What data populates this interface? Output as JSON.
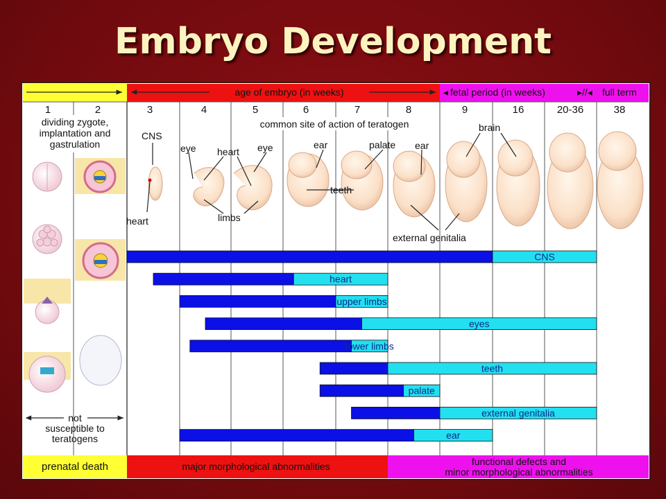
{
  "slide": {
    "title": "Embryo Development"
  },
  "header": {
    "embryo_period": "age of embryo (in weeks)",
    "fetal_period": "fetal period (in weeks)",
    "full_term": "full term",
    "colors": {
      "yellow": "#ffff33",
      "red": "#ee1111",
      "magenta": "#ee11ee"
    }
  },
  "weeks": [
    "1",
    "2",
    "3",
    "4",
    "5",
    "6",
    "7",
    "8",
    "9",
    "16",
    "20-36",
    "38"
  ],
  "early_stage_label": [
    "dividing zygote,",
    "implantation and",
    "gastrulation"
  ],
  "teratogen_note": "common site of action of teratogen",
  "organ_labels": {
    "cns": "CNS",
    "heart_left": "heart",
    "eye_1": "eye",
    "heart": "heart",
    "eye_2": "eye",
    "limbs": "limbs",
    "ear_1": "ear",
    "teeth": "teeth",
    "palate": "palate",
    "ear_2": "ear",
    "brain": "brain",
    "external_genitalia": "external genitalia"
  },
  "not_susceptible": [
    "not",
    "susceptible to",
    "teratogens"
  ],
  "sensitivity_bars": [
    {
      "label": "CNS",
      "major_start": 3,
      "major_end": 16,
      "minor_end": 38
    },
    {
      "label": "heart",
      "major_start": 3.5,
      "major_end": 6.2,
      "minor_end": 8
    },
    {
      "label": "upper limbs",
      "major_start": 4,
      "major_end": 7,
      "minor_end": 8
    },
    {
      "label": "eyes",
      "major_start": 4.5,
      "major_end": 7.5,
      "minor_end": 38
    },
    {
      "label": "lower limbs",
      "major_start": 4.2,
      "major_end": 7.3,
      "minor_end": 8
    },
    {
      "label": "teeth",
      "major_start": 6.7,
      "major_end": 8,
      "minor_end": 38
    },
    {
      "label": "palate",
      "major_start": 6.7,
      "major_end": 8.3,
      "minor_end": 9
    },
    {
      "label": "external genitalia",
      "major_start": 7.3,
      "major_end": 9,
      "minor_end": 38
    },
    {
      "label": "ear",
      "major_start": 4,
      "major_end": 8.5,
      "minor_end": 16
    }
  ],
  "bar_colors": {
    "major": "#0a10e6",
    "minor": "#22e0f0"
  },
  "footer": {
    "prenatal_death": "prenatal death",
    "major_abnormalities": "major morphological abnormalities",
    "functional_defects": [
      "functional defects and",
      "minor morphological abnormalities"
    ]
  }
}
